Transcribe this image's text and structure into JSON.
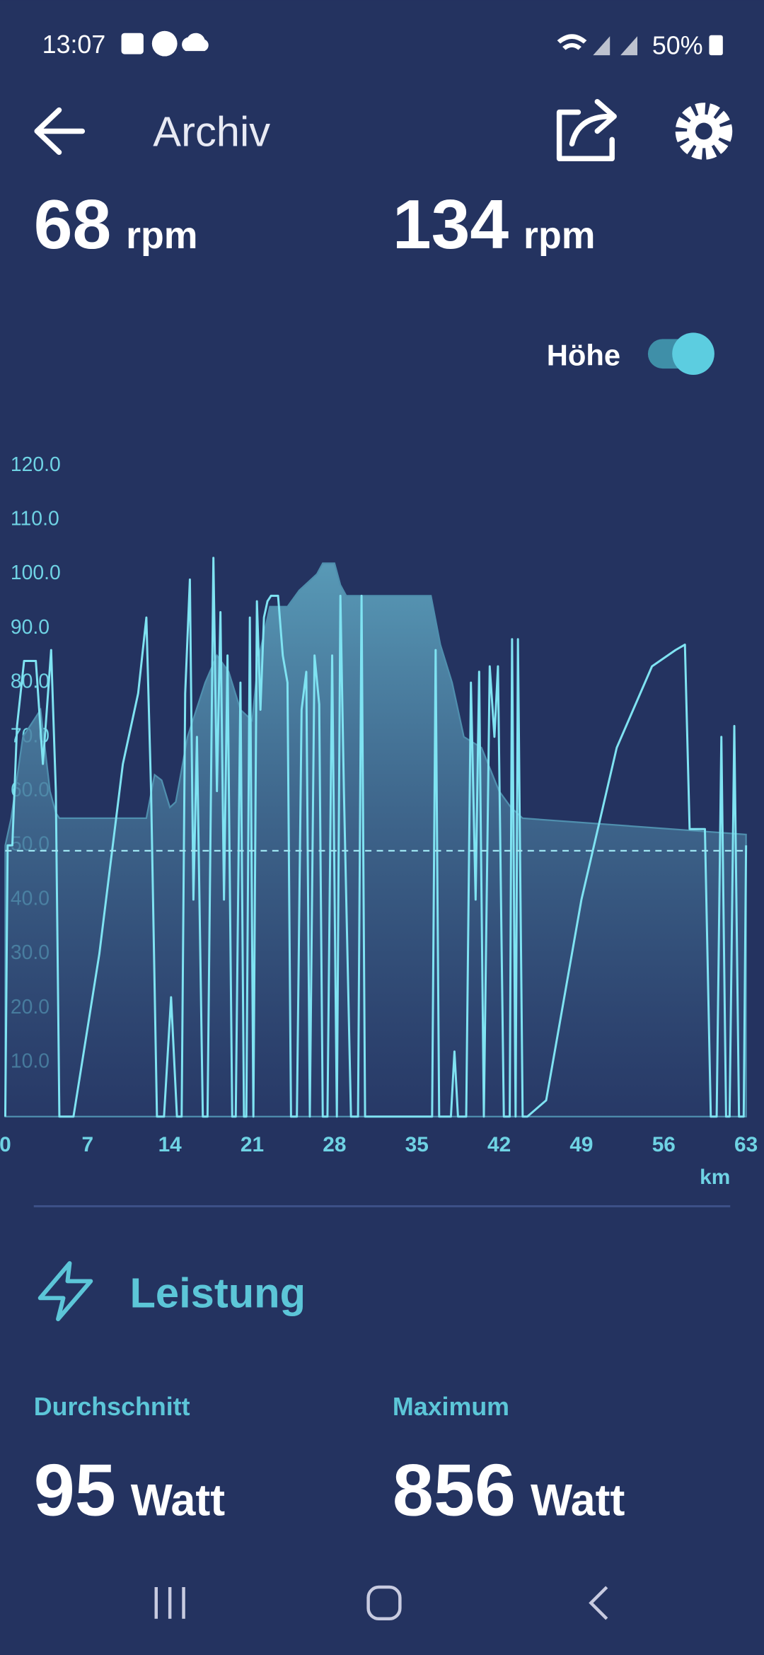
{
  "status_bar": {
    "time": "13:07",
    "battery": "50%"
  },
  "header": {
    "title": "Archiv"
  },
  "stats": [
    {
      "value": 68,
      "unit": "rpm"
    },
    {
      "value": 134,
      "unit": "rpm"
    }
  ],
  "toggle": {
    "label": "Höhe",
    "on": true
  },
  "chart_data": {
    "type": "line",
    "x_label": "km",
    "xlim": [
      0,
      63
    ],
    "xticks": [
      0,
      7,
      14,
      21,
      28,
      35,
      42,
      49,
      56,
      63
    ],
    "ylim": [
      0,
      120
    ],
    "yticks": [
      {
        "value": 10,
        "label": "10.0"
      },
      {
        "value": 20,
        "label": "20.0"
      },
      {
        "value": 30,
        "label": "30.0"
      },
      {
        "value": 40,
        "label": "40.0"
      },
      {
        "value": 50,
        "label": "50.0"
      },
      {
        "value": 60,
        "label": "60.0"
      },
      {
        "value": 70,
        "label": "70.0"
      },
      {
        "value": 80,
        "label": "80.0"
      },
      {
        "value": 90,
        "label": "90.0"
      },
      {
        "value": 100,
        "label": "100.0"
      },
      {
        "value": 110,
        "label": "110.0"
      },
      {
        "value": 120,
        "label": "120.0"
      }
    ],
    "reference_line": 49,
    "series": [
      {
        "color": "#4f8fae",
        "fill": true,
        "x": [
          0,
          0.5,
          1.5,
          3,
          3.8,
          4.3,
          4.6,
          12,
          12.7,
          13.3,
          14,
          14.5,
          15.5,
          17,
          18,
          19,
          20,
          21,
          21.5,
          22.5,
          24,
          25,
          26.5,
          27,
          28,
          28.5,
          29,
          36.2,
          37,
          38,
          39,
          40.5,
          42,
          43,
          44,
          63
        ],
        "values": [
          50,
          55,
          70,
          75,
          60,
          56,
          55,
          55,
          63,
          62,
          57,
          58,
          70,
          80,
          85,
          82,
          75,
          73,
          84,
          94,
          94,
          97,
          100,
          102,
          102,
          98,
          96,
          96,
          87,
          80,
          70,
          68,
          60,
          57,
          55,
          52
        ]
      },
      {
        "color": "#7fe3f2",
        "fill": false,
        "x": [
          0,
          0.2,
          0.6,
          1,
          1.6,
          2.6,
          3.2,
          3.9,
          4.3,
          4.6,
          5.8,
          8,
          10,
          11.3,
          12,
          12.4,
          12.9,
          13.5,
          14.1,
          14.6,
          15,
          15.3,
          15.7,
          16,
          16.3,
          16.8,
          17.2,
          17.7,
          18,
          18.3,
          18.6,
          18.9,
          19.3,
          19.6,
          20,
          20.3,
          20.5,
          20.8,
          21.1,
          21.4,
          21.7,
          22,
          22.3,
          22.6,
          23.2,
          23.6,
          24,
          24.3,
          24.8,
          25.2,
          25.6,
          25.9,
          26.3,
          26.7,
          27,
          27.4,
          27.8,
          28.2,
          28.5,
          28.8,
          29.4,
          30,
          30.3,
          30.6,
          36.3,
          36.6,
          36.9,
          37.9,
          38.2,
          38.5,
          39.2,
          39.6,
          40,
          40.3,
          40.7,
          41.2,
          41.6,
          41.9,
          42.4,
          42.9,
          43.1,
          43.4,
          43.6,
          44,
          44.4,
          46,
          49,
          52,
          55,
          57,
          57.8,
          58.2,
          59.5,
          60,
          60.5,
          60.9,
          61.3,
          61.6,
          62,
          62.4,
          62.8,
          63
        ],
        "values": [
          0,
          50,
          50,
          72,
          84,
          84,
          65,
          86,
          60,
          0,
          0,
          30,
          65,
          78,
          92,
          60,
          0,
          0,
          22,
          0,
          0,
          78,
          99,
          40,
          70,
          0,
          0,
          103,
          60,
          93,
          40,
          85,
          0,
          0,
          80,
          0,
          0,
          92,
          0,
          95,
          75,
          92,
          95,
          96,
          96,
          85,
          80,
          0,
          0,
          75,
          82,
          0,
          85,
          76,
          0,
          0,
          85,
          0,
          96,
          60,
          0,
          0,
          96,
          0,
          0,
          86,
          0,
          0,
          12,
          0,
          0,
          80,
          40,
          82,
          0,
          83,
          70,
          83,
          0,
          0,
          88,
          0,
          88,
          0,
          0,
          3,
          40,
          68,
          83,
          86,
          87,
          53,
          53,
          0,
          0,
          70,
          0,
          0,
          72,
          0,
          0,
          50
        ]
      }
    ]
  },
  "section": {
    "title": "Leistung",
    "items": [
      {
        "label": "Durchschnitt",
        "value": 95,
        "unit": "Watt"
      },
      {
        "label": "Maximum",
        "value": 856,
        "unit": "Watt"
      }
    ]
  }
}
